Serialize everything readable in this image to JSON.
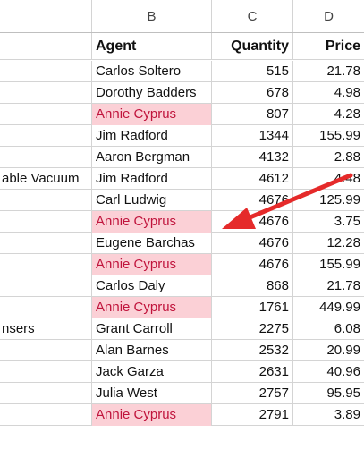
{
  "column_headers": [
    "B",
    "C",
    "D"
  ],
  "table": {
    "headers": {
      "agent": "Agent",
      "quantity": "Quantity",
      "price": "Price"
    },
    "rows": [
      {
        "a": "",
        "agent": "Carlos Soltero",
        "quantity": "515",
        "price": "21.78",
        "highlight": false
      },
      {
        "a": "",
        "agent": "Dorothy Badders",
        "quantity": "678",
        "price": "4.98",
        "highlight": false
      },
      {
        "a": "",
        "agent": "Annie Cyprus",
        "quantity": "807",
        "price": "4.28",
        "highlight": true
      },
      {
        "a": "",
        "agent": "Jim Radford",
        "quantity": "1344",
        "price": "155.99",
        "highlight": false
      },
      {
        "a": "",
        "agent": "Aaron Bergman",
        "quantity": "4132",
        "price": "2.88",
        "highlight": false
      },
      {
        "a": "able Vacuum",
        "agent": "Jim Radford",
        "quantity": "4612",
        "price": "4.48",
        "highlight": false
      },
      {
        "a": "",
        "agent": "Carl Ludwig",
        "quantity": "4676",
        "price": "125.99",
        "highlight": false
      },
      {
        "a": "",
        "agent": "Annie Cyprus",
        "quantity": "4676",
        "price": "3.75",
        "highlight": true
      },
      {
        "a": "",
        "agent": "Eugene Barchas",
        "quantity": "4676",
        "price": "12.28",
        "highlight": false
      },
      {
        "a": "",
        "agent": "Annie Cyprus",
        "quantity": "4676",
        "price": "155.99",
        "highlight": true
      },
      {
        "a": "",
        "agent": "Carlos Daly",
        "quantity": "868",
        "price": "21.78",
        "highlight": false
      },
      {
        "a": "",
        "agent": "Annie Cyprus",
        "quantity": "1761",
        "price": "449.99",
        "highlight": true
      },
      {
        "a": "nsers",
        "agent": "Grant Carroll",
        "quantity": "2275",
        "price": "6.08",
        "highlight": false
      },
      {
        "a": "",
        "agent": "Alan Barnes",
        "quantity": "2532",
        "price": "20.99",
        "highlight": false
      },
      {
        "a": "",
        "agent": "Jack Garza",
        "quantity": "2631",
        "price": "40.96",
        "highlight": false
      },
      {
        "a": "",
        "agent": "Julia West",
        "quantity": "2757",
        "price": "95.95",
        "highlight": false
      },
      {
        "a": "",
        "agent": "Annie Cyprus",
        "quantity": "2791",
        "price": "3.89",
        "highlight": true
      }
    ]
  },
  "colors": {
    "highlight_fill": "#fbd0d6",
    "highlight_text": "#c0143c",
    "arrow": "#e52a2a"
  },
  "annotation": {
    "icon": "arrow-icon"
  }
}
